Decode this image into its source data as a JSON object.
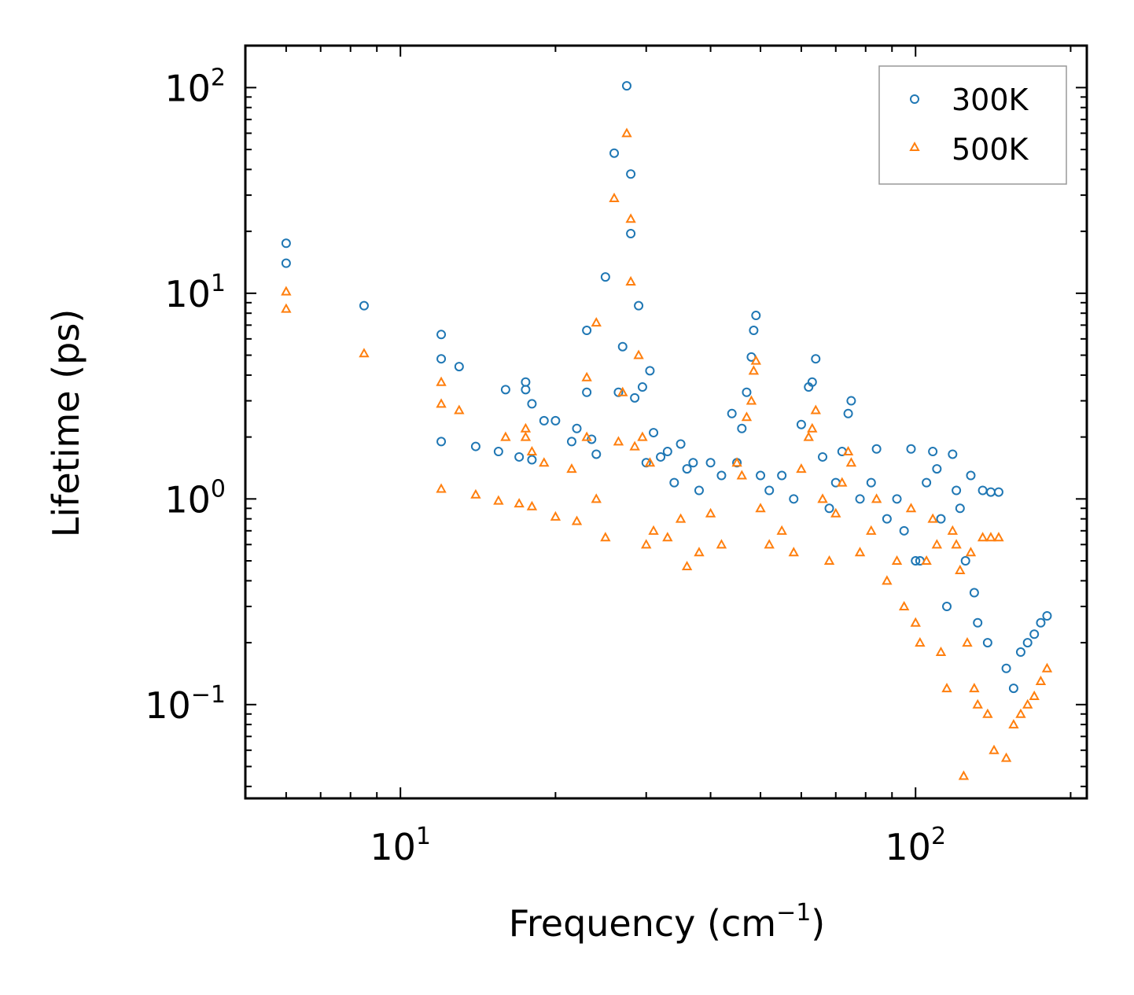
{
  "chart_data": {
    "type": "scatter",
    "title": "",
    "xlabel": "Frequency (cm−1)",
    "xlabel_base": "Frequency (cm",
    "xlabel_sup": "−1",
    "xlabel_close": ")",
    "ylabel": "Lifetime (ps)",
    "xscale": "log",
    "yscale": "log",
    "xlim": [
      5,
      215
    ],
    "ylim": [
      0.035,
      160
    ],
    "xticks": [
      {
        "value": 10,
        "base": "10",
        "exp": "1"
      },
      {
        "value": 100,
        "base": "10",
        "exp": "2"
      }
    ],
    "yticks": [
      {
        "value": 0.1,
        "base": "10",
        "exp": "−1"
      },
      {
        "value": 1,
        "base": "10",
        "exp": "0"
      },
      {
        "value": 10,
        "base": "10",
        "exp": "1"
      },
      {
        "value": 100,
        "base": "10",
        "exp": "2"
      }
    ],
    "legend_position": "top-right",
    "series": [
      {
        "name": "300K",
        "marker": "circle",
        "color": "#1f77b4",
        "points": [
          [
            6.0,
            17.5
          ],
          [
            6.0,
            14.0
          ],
          [
            8.5,
            8.7
          ],
          [
            12.0,
            6.3
          ],
          [
            12.0,
            4.8
          ],
          [
            12.0,
            1.9
          ],
          [
            13.0,
            4.4
          ],
          [
            14.0,
            1.8
          ],
          [
            15.5,
            1.7
          ],
          [
            16.0,
            3.4
          ],
          [
            17.0,
            1.6
          ],
          [
            17.5,
            3.7
          ],
          [
            17.5,
            3.4
          ],
          [
            18.0,
            2.9
          ],
          [
            18.0,
            1.55
          ],
          [
            19.0,
            2.4
          ],
          [
            20.0,
            2.4
          ],
          [
            21.5,
            1.9
          ],
          [
            22.0,
            2.2
          ],
          [
            23.0,
            6.6
          ],
          [
            23.0,
            3.3
          ],
          [
            23.5,
            1.95
          ],
          [
            24.0,
            1.65
          ],
          [
            25.0,
            12.0
          ],
          [
            26.0,
            48.0
          ],
          [
            26.5,
            3.3
          ],
          [
            27.0,
            5.5
          ],
          [
            27.5,
            102.0
          ],
          [
            28.0,
            38.0
          ],
          [
            28.0,
            19.5
          ],
          [
            28.5,
            3.1
          ],
          [
            29.0,
            8.7
          ],
          [
            29.5,
            3.5
          ],
          [
            30.0,
            1.5
          ],
          [
            30.5,
            4.2
          ],
          [
            31.0,
            2.1
          ],
          [
            32.0,
            1.6
          ],
          [
            33.0,
            1.7
          ],
          [
            34.0,
            1.2
          ],
          [
            35.0,
            1.85
          ],
          [
            36.0,
            1.4
          ],
          [
            37.0,
            1.5
          ],
          [
            38.0,
            1.1
          ],
          [
            40.0,
            1.5
          ],
          [
            42.0,
            1.3
          ],
          [
            44.0,
            2.6
          ],
          [
            45.0,
            1.5
          ],
          [
            46.0,
            2.2
          ],
          [
            47.0,
            3.3
          ],
          [
            48.0,
            4.9
          ],
          [
            48.5,
            6.6
          ],
          [
            49.0,
            7.8
          ],
          [
            50.0,
            1.3
          ],
          [
            52.0,
            1.1
          ],
          [
            55.0,
            1.3
          ],
          [
            58.0,
            1.0
          ],
          [
            60.0,
            2.3
          ],
          [
            62.0,
            3.5
          ],
          [
            63.0,
            3.7
          ],
          [
            64.0,
            4.8
          ],
          [
            66.0,
            1.6
          ],
          [
            68.0,
            0.9
          ],
          [
            70.0,
            1.2
          ],
          [
            72.0,
            1.7
          ],
          [
            74.0,
            2.6
          ],
          [
            75.0,
            3.0
          ],
          [
            78.0,
            1.0
          ],
          [
            82.0,
            1.2
          ],
          [
            84.0,
            1.75
          ],
          [
            88.0,
            0.8
          ],
          [
            92.0,
            1.0
          ],
          [
            95.0,
            0.7
          ],
          [
            98.0,
            1.75
          ],
          [
            100.0,
            0.5
          ],
          [
            102.0,
            0.5
          ],
          [
            105.0,
            1.2
          ],
          [
            108.0,
            1.7
          ],
          [
            110.0,
            1.4
          ],
          [
            112.0,
            0.8
          ],
          [
            115.0,
            0.3
          ],
          [
            118.0,
            1.65
          ],
          [
            120.0,
            1.1
          ],
          [
            122.0,
            0.9
          ],
          [
            125.0,
            0.5
          ],
          [
            128.0,
            1.3
          ],
          [
            130.0,
            0.35
          ],
          [
            132.0,
            0.25
          ],
          [
            135.0,
            1.1
          ],
          [
            138.0,
            0.2
          ],
          [
            140.0,
            1.08
          ],
          [
            145.0,
            1.08
          ],
          [
            150.0,
            0.15
          ],
          [
            155.0,
            0.12
          ],
          [
            160.0,
            0.18
          ],
          [
            165.0,
            0.2
          ],
          [
            170.0,
            0.22
          ],
          [
            175.0,
            0.25
          ],
          [
            180.0,
            0.27
          ]
        ]
      },
      {
        "name": "500K",
        "marker": "triangle",
        "color": "#ff7f0e",
        "points": [
          [
            6.0,
            10.2
          ],
          [
            6.0,
            8.4
          ],
          [
            8.5,
            5.1
          ],
          [
            12.0,
            3.7
          ],
          [
            12.0,
            2.9
          ],
          [
            12.0,
            1.12
          ],
          [
            13.0,
            2.7
          ],
          [
            14.0,
            1.05
          ],
          [
            15.5,
            0.98
          ],
          [
            16.0,
            2.0
          ],
          [
            17.0,
            0.95
          ],
          [
            17.5,
            2.2
          ],
          [
            17.5,
            2.0
          ],
          [
            18.0,
            1.7
          ],
          [
            18.0,
            0.92
          ],
          [
            19.0,
            1.5
          ],
          [
            20.0,
            0.82
          ],
          [
            21.5,
            1.4
          ],
          [
            22.0,
            0.78
          ],
          [
            23.0,
            3.9
          ],
          [
            23.0,
            2.0
          ],
          [
            24.0,
            7.2
          ],
          [
            24.0,
            1.0
          ],
          [
            25.0,
            0.65
          ],
          [
            26.0,
            29.0
          ],
          [
            26.5,
            1.9
          ],
          [
            27.0,
            3.3
          ],
          [
            27.5,
            60.0
          ],
          [
            28.0,
            23.0
          ],
          [
            28.0,
            11.4
          ],
          [
            28.5,
            1.8
          ],
          [
            29.0,
            5.0
          ],
          [
            29.5,
            2.0
          ],
          [
            30.0,
            0.6
          ],
          [
            30.5,
            1.5
          ],
          [
            31.0,
            0.7
          ],
          [
            33.0,
            0.65
          ],
          [
            35.0,
            0.8
          ],
          [
            36.0,
            0.47
          ],
          [
            38.0,
            0.55
          ],
          [
            40.0,
            0.85
          ],
          [
            42.0,
            0.6
          ],
          [
            45.0,
            1.5
          ],
          [
            46.0,
            1.3
          ],
          [
            47.0,
            2.5
          ],
          [
            48.0,
            3.0
          ],
          [
            48.5,
            4.2
          ],
          [
            49.0,
            4.7
          ],
          [
            50.0,
            0.9
          ],
          [
            52.0,
            0.6
          ],
          [
            55.0,
            0.7
          ],
          [
            58.0,
            0.55
          ],
          [
            60.0,
            1.4
          ],
          [
            62.0,
            2.0
          ],
          [
            63.0,
            2.2
          ],
          [
            64.0,
            2.7
          ],
          [
            66.0,
            1.0
          ],
          [
            68.0,
            0.5
          ],
          [
            70.0,
            0.85
          ],
          [
            72.0,
            1.2
          ],
          [
            74.0,
            1.7
          ],
          [
            75.0,
            1.5
          ],
          [
            78.0,
            0.55
          ],
          [
            82.0,
            0.7
          ],
          [
            84.0,
            1.0
          ],
          [
            88.0,
            0.4
          ],
          [
            92.0,
            0.5
          ],
          [
            95.0,
            0.3
          ],
          [
            98.0,
            0.9
          ],
          [
            100.0,
            0.25
          ],
          [
            102.0,
            0.2
          ],
          [
            105.0,
            0.5
          ],
          [
            108.0,
            0.8
          ],
          [
            110.0,
            0.6
          ],
          [
            112.0,
            0.18
          ],
          [
            115.0,
            0.12
          ],
          [
            118.0,
            0.7
          ],
          [
            120.0,
            0.6
          ],
          [
            122.0,
            0.45
          ],
          [
            124.0,
            0.045
          ],
          [
            126.0,
            0.2
          ],
          [
            128.0,
            0.55
          ],
          [
            130.0,
            0.12
          ],
          [
            132.0,
            0.1
          ],
          [
            135.0,
            0.65
          ],
          [
            138.0,
            0.09
          ],
          [
            140.0,
            0.65
          ],
          [
            142.0,
            0.06
          ],
          [
            145.0,
            0.65
          ],
          [
            150.0,
            0.055
          ],
          [
            155.0,
            0.08
          ],
          [
            160.0,
            0.09
          ],
          [
            165.0,
            0.1
          ],
          [
            170.0,
            0.11
          ],
          [
            175.0,
            0.13
          ],
          [
            180.0,
            0.15
          ]
        ]
      }
    ]
  }
}
